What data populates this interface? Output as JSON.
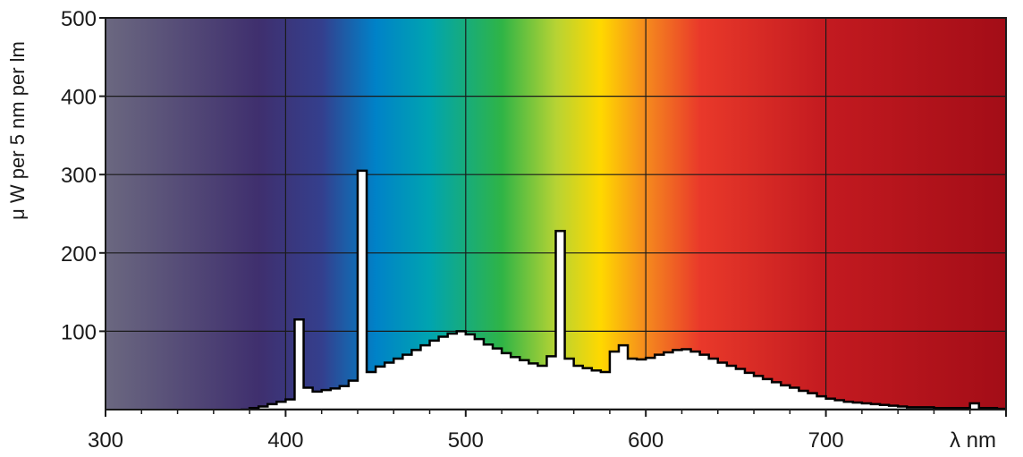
{
  "chart_data": {
    "type": "area",
    "title": "",
    "xlabel": "λ nm",
    "ylabel": "μ W per 5 nm per lm",
    "xlim": [
      300,
      800
    ],
    "ylim": [
      0,
      500
    ],
    "x_ticks": [
      300,
      400,
      500,
      600,
      700
    ],
    "y_ticks": [
      100,
      200,
      300,
      400,
      500
    ],
    "grid": true,
    "background": "visible-spectrum gradient",
    "spectrum_colors": [
      {
        "nm": 300,
        "color": "#6b6880"
      },
      {
        "nm": 385,
        "color": "#3f2f6e"
      },
      {
        "nm": 420,
        "color": "#343f8d"
      },
      {
        "nm": 450,
        "color": "#0082c8"
      },
      {
        "nm": 480,
        "color": "#00a4b0"
      },
      {
        "nm": 520,
        "color": "#2fb446"
      },
      {
        "nm": 550,
        "color": "#b6d334"
      },
      {
        "nm": 575,
        "color": "#ffd800"
      },
      {
        "nm": 600,
        "color": "#f58a1e"
      },
      {
        "nm": 630,
        "color": "#e9392a"
      },
      {
        "nm": 700,
        "color": "#c31a20"
      },
      {
        "nm": 800,
        "color": "#a30d17"
      }
    ],
    "series": [
      {
        "step_width_nm": 5,
        "x": [
          380,
          385,
          390,
          395,
          400,
          405,
          410,
          415,
          420,
          425,
          430,
          435,
          440,
          445,
          450,
          455,
          460,
          465,
          470,
          475,
          480,
          485,
          490,
          495,
          500,
          505,
          510,
          515,
          520,
          525,
          530,
          535,
          540,
          545,
          550,
          555,
          560,
          565,
          570,
          575,
          580,
          585,
          590,
          595,
          600,
          605,
          610,
          615,
          620,
          625,
          630,
          635,
          640,
          645,
          650,
          655,
          660,
          665,
          670,
          675,
          680,
          685,
          690,
          695,
          700,
          705,
          710,
          715,
          720,
          725,
          730,
          735,
          740,
          745,
          750,
          755,
          760,
          765,
          770,
          775,
          780,
          785,
          790,
          795
        ],
        "values": [
          2,
          4,
          7,
          10,
          13,
          115,
          28,
          23,
          25,
          27,
          30,
          37,
          305,
          48,
          55,
          60,
          65,
          70,
          76,
          82,
          88,
          93,
          97,
          100,
          96,
          90,
          83,
          78,
          72,
          67,
          63,
          59,
          56,
          68,
          228,
          65,
          56,
          53,
          50,
          48,
          74,
          82,
          65,
          64,
          66,
          70,
          73,
          76,
          77,
          74,
          70,
          65,
          60,
          56,
          52,
          47,
          43,
          39,
          35,
          31,
          28,
          24,
          21,
          17,
          14,
          12,
          10,
          9,
          8,
          7,
          6,
          5,
          4,
          3,
          3,
          3,
          2,
          2,
          2,
          2,
          8,
          2,
          2,
          1
        ]
      }
    ]
  }
}
